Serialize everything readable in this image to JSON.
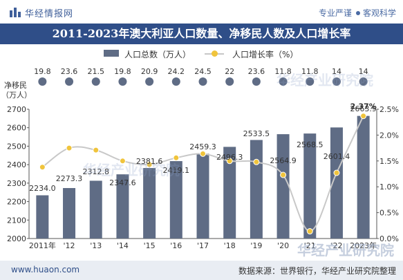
{
  "header": {
    "brand": "华经情报网",
    "slogan_1": "专业严谨",
    "slogan_2": "客观科学"
  },
  "footer": {
    "site": "www.huaon.com",
    "source": "数据来源：世界银行，华经产业研究院整理"
  },
  "watermark": "华经产业研究院",
  "colors": {
    "title_bg": "#2f4e88",
    "bar": "#5f6c85",
    "line": "#c8c8c8",
    "marker": "#f0c43c",
    "bubble": "#5f6c85"
  },
  "chart_data": {
    "type": "bar",
    "title": "2011-2023年澳大利亚人口数量、净移民人数及人口增长率",
    "categories": [
      "2011年",
      "'12",
      "'13",
      "'14",
      "'15",
      "'16",
      "'17",
      "'18",
      "'19",
      "'20",
      "'21",
      "'22",
      "2023年"
    ],
    "series": [
      {
        "name": "人口总数（万人）",
        "type": "bar",
        "axis": "left",
        "values": [
          2234.0,
          2273.3,
          2312.8,
          2347.6,
          2381.6,
          2419.1,
          2459.3,
          2496.3,
          2533.5,
          2564.9,
          2568.5,
          2601.4,
          2663.9
        ],
        "labels": [
          "2234.0",
          "2273.3",
          "2312.8",
          "2347.6",
          "2381.6",
          "2419.1",
          "2459.3",
          "2496.3",
          "2533.5",
          "2564.9",
          "2568.5",
          "2601.4",
          "2663.9"
        ]
      },
      {
        "name": "人口增长率（%）",
        "type": "line",
        "axis": "right",
        "values": [
          1.38,
          1.75,
          1.71,
          1.5,
          1.43,
          1.56,
          1.64,
          1.5,
          1.48,
          1.23,
          0.14,
          1.27,
          2.37
        ],
        "labels": [
          "",
          "",
          "",
          "",
          "",
          "",
          "",
          "",
          "",
          "",
          "",
          "",
          "2.37%"
        ]
      },
      {
        "type": "bubble_row",
        "values": [
          19.8,
          23.6,
          21.5,
          19.8,
          20.9,
          24.2,
          24.5,
          22,
          23.6,
          11.8,
          11.8,
          14,
          14
        ],
        "labels": [
          "19.8",
          "23.6",
          "21.5",
          "19.8",
          "20.9",
          "24.2",
          "24.5",
          "22",
          "23.6",
          "11.8",
          "11.8",
          "14",
          "14"
        ]
      }
    ],
    "bubble_row_label_1": "净移民",
    "bubble_row_label_2": "（万人）",
    "y_left": {
      "lim": [
        2000,
        2700
      ],
      "ticks": [
        "2000",
        "2100",
        "2200",
        "2300",
        "2400",
        "2500",
        "2600",
        "2700"
      ]
    },
    "y_right": {
      "lim": [
        0,
        2.5
      ],
      "ticks": [
        "0.0%",
        "0.5%",
        "1.0%",
        "1.5%",
        "2.0%",
        "2.5%"
      ]
    },
    "legend_position": "top-center",
    "grid": false
  }
}
